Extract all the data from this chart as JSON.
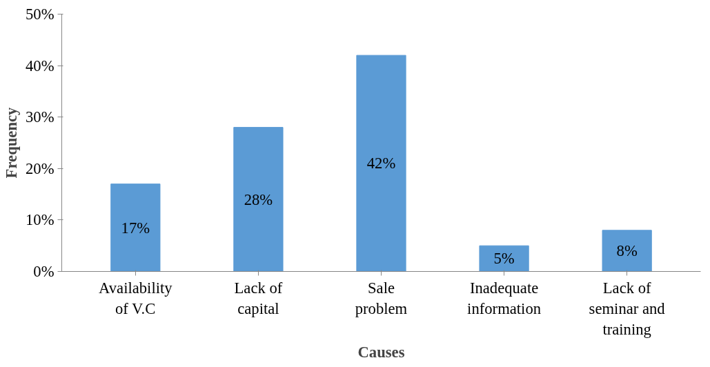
{
  "chart_data": {
    "type": "bar",
    "xlabel": "Causes",
    "ylabel": "Frequency",
    "categories": [
      "Availability of V.C",
      "Lack of capital",
      "Sale problem",
      "Inadequate information",
      "Lack of seminar and training"
    ],
    "values": [
      17,
      28,
      42,
      5,
      8
    ],
    "value_labels": [
      "17%",
      "28%",
      "42%",
      "5%",
      "8%"
    ],
    "color": "#5b9bd5",
    "ylim": [
      0,
      50
    ],
    "yticks": [
      {
        "value": 0,
        "label": "0%"
      },
      {
        "value": 10,
        "label": "10%"
      },
      {
        "value": 20,
        "label": "20%"
      },
      {
        "value": 30,
        "label": "30%"
      },
      {
        "value": 40,
        "label": "40%"
      },
      {
        "value": 50,
        "label": "50%"
      }
    ],
    "grid": false
  }
}
